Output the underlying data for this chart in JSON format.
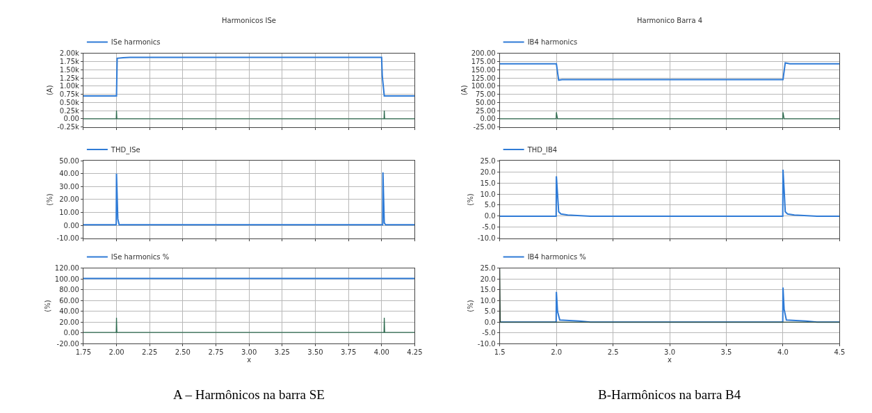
{
  "chart_data": [
    {
      "type": "line",
      "title": "Harmonicos ISe",
      "ylabel": "(A)",
      "xlim": [
        1.75,
        4.25
      ],
      "xticks": [
        {
          "value": 1.75,
          "label": null
        },
        {
          "value": 2.0,
          "label": null
        },
        {
          "value": 2.25,
          "label": null
        },
        {
          "value": 2.5,
          "label": null
        },
        {
          "value": 2.75,
          "label": null
        },
        {
          "value": 3.0,
          "label": null
        },
        {
          "value": 3.25,
          "label": null
        },
        {
          "value": 3.5,
          "label": null
        },
        {
          "value": 3.75,
          "label": null
        },
        {
          "value": 4.0,
          "label": null
        },
        {
          "value": 4.25,
          "label": null
        }
      ],
      "ylim": [
        -250,
        2000
      ],
      "yticks": [
        {
          "value": -250,
          "label": "-0.25k"
        },
        {
          "value": 0,
          "label": "0.00"
        },
        {
          "value": 250,
          "label": "0.25k"
        },
        {
          "value": 500,
          "label": "0.50k"
        },
        {
          "value": 750,
          "label": "0.75k"
        },
        {
          "value": 1000,
          "label": "1.00k"
        },
        {
          "value": 1250,
          "label": "1.25k"
        },
        {
          "value": 1500,
          "label": "1.50k"
        },
        {
          "value": 1750,
          "label": "1.75k"
        },
        {
          "value": 2000,
          "label": "2.00k"
        }
      ],
      "grid": true,
      "legend": "top left",
      "tick_labels": "y",
      "marker": "none",
      "line_style": "solid",
      "series": [
        {
          "name": "ISe harmonics",
          "color": "#2f7bd6",
          "x": [
            1.75,
            2.0,
            2.005,
            2.05,
            2.1,
            4.0,
            4.005,
            4.02,
            4.25
          ],
          "values": [
            700,
            700,
            1850,
            1870,
            1880,
            1880,
            1300,
            700,
            700
          ]
        },
        {
          "color": "#2e6b4f",
          "x": [
            1.75,
            1.998,
            2.0,
            2.003,
            4.018,
            4.02,
            4.023,
            4.25
          ],
          "values": [
            0,
            0,
            250,
            0,
            0,
            250,
            0,
            0
          ]
        }
      ]
    },
    {
      "type": "line",
      "ylabel": "(%)",
      "xlim": [
        1.75,
        4.25
      ],
      "xticks": [
        {
          "value": 1.75,
          "label": null
        },
        {
          "value": 2.0,
          "label": null
        },
        {
          "value": 2.25,
          "label": null
        },
        {
          "value": 2.5,
          "label": null
        },
        {
          "value": 2.75,
          "label": null
        },
        {
          "value": 3.0,
          "label": null
        },
        {
          "value": 3.25,
          "label": null
        },
        {
          "value": 3.5,
          "label": null
        },
        {
          "value": 3.75,
          "label": null
        },
        {
          "value": 4.0,
          "label": null
        },
        {
          "value": 4.25,
          "label": null
        }
      ],
      "ylim": [
        -10,
        50
      ],
      "yticks": [
        {
          "value": -10,
          "label": "-10.00"
        },
        {
          "value": 0,
          "label": "0.00"
        },
        {
          "value": 10,
          "label": "10.00"
        },
        {
          "value": 20,
          "label": "20.00"
        },
        {
          "value": 30,
          "label": "30.00"
        },
        {
          "value": 40,
          "label": "40.00"
        },
        {
          "value": 50,
          "label": "50.00"
        }
      ],
      "grid": true,
      "legend": "top left",
      "tick_labels": "y",
      "marker": "none",
      "line_style": "solid",
      "series": [
        {
          "name": "THD_ISe",
          "color": "#2f7bd6",
          "x": [
            1.75,
            1.998,
            2.0,
            2.01,
            2.02,
            4.008,
            4.01,
            4.02,
            4.03,
            4.25
          ],
          "values": [
            0.5,
            0.5,
            40,
            5,
            0.5,
            0.5,
            41,
            2,
            0.5,
            0.5
          ]
        }
      ]
    },
    {
      "type": "line",
      "ylabel": "(%)",
      "xlabel": "x",
      "annotations": [
        "A – Harmônicos na barra SE"
      ],
      "xlim": [
        1.75,
        4.25
      ],
      "xticks": [
        {
          "value": 1.75,
          "label": "1.75"
        },
        {
          "value": 2.0,
          "label": "2.00"
        },
        {
          "value": 2.25,
          "label": "2.25"
        },
        {
          "value": 2.5,
          "label": "2.50"
        },
        {
          "value": 2.75,
          "label": "2.75"
        },
        {
          "value": 3.0,
          "label": "3.00"
        },
        {
          "value": 3.25,
          "label": "3.25"
        },
        {
          "value": 3.5,
          "label": "3.50"
        },
        {
          "value": 3.75,
          "label": "3.75"
        },
        {
          "value": 4.0,
          "label": "4.00"
        },
        {
          "value": 4.25,
          "label": "4.25"
        }
      ],
      "ylim": [
        -20,
        120
      ],
      "yticks": [
        {
          "value": -20,
          "label": "-20.00"
        },
        {
          "value": 0,
          "label": "0.00"
        },
        {
          "value": 20,
          "label": "20.00"
        },
        {
          "value": 40,
          "label": "40.00"
        },
        {
          "value": 60,
          "label": "60.00"
        },
        {
          "value": 80,
          "label": "80.00"
        },
        {
          "value": 100,
          "label": "100.00"
        },
        {
          "value": 120,
          "label": "120.00"
        }
      ],
      "grid": true,
      "legend": "top left",
      "marker": "none",
      "line_style": "solid",
      "series": [
        {
          "name": "ISe harmonics %",
          "color": "#2f7bd6",
          "x": [
            1.75,
            4.25
          ],
          "values": [
            101,
            101
          ]
        },
        {
          "color": "#2e6b4f",
          "x": [
            1.75,
            1.998,
            2.0,
            2.003,
            4.018,
            4.02,
            4.023,
            4.25
          ],
          "values": [
            1,
            1,
            28,
            1,
            1,
            28,
            1,
            1
          ]
        }
      ]
    },
    {
      "type": "line",
      "title": "Harmonico Barra 4",
      "ylabel": "(A)",
      "xlim": [
        1.5,
        4.5
      ],
      "xticks": [
        {
          "value": 1.5,
          "label": null
        },
        {
          "value": 2.0,
          "label": null
        },
        {
          "value": 2.5,
          "label": null
        },
        {
          "value": 3.0,
          "label": null
        },
        {
          "value": 3.5,
          "label": null
        },
        {
          "value": 4.0,
          "label": null
        },
        {
          "value": 4.5,
          "label": null
        }
      ],
      "ylim": [
        -25,
        200
      ],
      "yticks": [
        {
          "value": -25,
          "label": "-25.00"
        },
        {
          "value": 0,
          "label": "0.00"
        },
        {
          "value": 25,
          "label": "25.00"
        },
        {
          "value": 50,
          "label": "50.00"
        },
        {
          "value": 75,
          "label": "75.00"
        },
        {
          "value": 100,
          "label": "100.00"
        },
        {
          "value": 125,
          "label": "125.00"
        },
        {
          "value": 150,
          "label": "150.00"
        },
        {
          "value": 175,
          "label": "175.00"
        },
        {
          "value": 200,
          "label": "200.00"
        }
      ],
      "grid": true,
      "legend": "top left",
      "tick_labels": "y",
      "marker": "none",
      "line_style": "solid",
      "series": [
        {
          "name": "IB4 harmonics",
          "color": "#2f7bd6",
          "x": [
            1.5,
            2.0,
            2.02,
            2.05,
            4.0,
            4.02,
            4.06,
            4.5
          ],
          "values": [
            168,
            168,
            118,
            120,
            120,
            171,
            168,
            168
          ]
        },
        {
          "color": "#2e6b4f",
          "x": [
            1.5,
            1.998,
            2.0,
            2.01,
            3.998,
            4.0,
            4.01,
            4.5
          ],
          "values": [
            0,
            0,
            20,
            0,
            0,
            20,
            0,
            0
          ]
        }
      ]
    },
    {
      "type": "line",
      "ylabel": "(%)",
      "xlim": [
        1.5,
        4.5
      ],
      "xticks": [
        {
          "value": 1.5,
          "label": null
        },
        {
          "value": 2.0,
          "label": null
        },
        {
          "value": 2.5,
          "label": null
        },
        {
          "value": 3.0,
          "label": null
        },
        {
          "value": 3.5,
          "label": null
        },
        {
          "value": 4.0,
          "label": null
        },
        {
          "value": 4.5,
          "label": null
        }
      ],
      "ylim": [
        -10,
        25
      ],
      "yticks": [
        {
          "value": -10,
          "label": "-10.0"
        },
        {
          "value": -5,
          "label": "-5.0"
        },
        {
          "value": 0,
          "label": "0.0"
        },
        {
          "value": 5,
          "label": "5.0"
        },
        {
          "value": 10,
          "label": "10.0"
        },
        {
          "value": 15,
          "label": "15.0"
        },
        {
          "value": 20,
          "label": "20.0"
        },
        {
          "value": 25,
          "label": "25.0"
        }
      ],
      "grid": true,
      "legend": "top left",
      "tick_labels": "y",
      "marker": "none",
      "line_style": "solid",
      "series": [
        {
          "name": "THD_IB4",
          "color": "#2f7bd6",
          "x": [
            1.5,
            1.998,
            2.0,
            2.01,
            2.02,
            2.04,
            2.1,
            2.3,
            3.998,
            4.0,
            4.01,
            4.02,
            4.04,
            4.1,
            4.3,
            4.5
          ],
          "values": [
            0,
            0,
            18,
            10,
            2,
            1,
            0.5,
            0,
            0,
            21,
            12,
            2,
            1,
            0.5,
            0,
            0
          ]
        }
      ]
    },
    {
      "type": "line",
      "ylabel": "(%)",
      "xlabel": "x",
      "annotations": [
        "B-Harmônicos na barra B4"
      ],
      "xlim": [
        1.5,
        4.5
      ],
      "xticks": [
        {
          "value": 1.5,
          "label": "1.5"
        },
        {
          "value": 2.0,
          "label": "2.0"
        },
        {
          "value": 2.5,
          "label": "2.5"
        },
        {
          "value": 3.0,
          "label": "3.0"
        },
        {
          "value": 3.5,
          "label": "3.5"
        },
        {
          "value": 4.0,
          "label": "4.0"
        },
        {
          "value": 4.5,
          "label": "4.5"
        }
      ],
      "ylim": [
        -10,
        25
      ],
      "yticks": [
        {
          "value": -10,
          "label": "-10.0"
        },
        {
          "value": -5,
          "label": "-5.0"
        },
        {
          "value": 0,
          "label": "0.0"
        },
        {
          "value": 5,
          "label": "5.0"
        },
        {
          "value": 10,
          "label": "10.0"
        },
        {
          "value": 15,
          "label": "15.0"
        },
        {
          "value": 20,
          "label": "20.0"
        },
        {
          "value": 25,
          "label": "25.0"
        }
      ],
      "grid": true,
      "legend": "top left",
      "marker": "none",
      "line_style": "solid",
      "series": [
        {
          "name": "IB4 harmonics %",
          "color": "#2f7bd6",
          "x": [
            1.5,
            1.998,
            2.0,
            2.01,
            2.03,
            2.2,
            2.3,
            3.998,
            4.0,
            4.01,
            4.03,
            4.2,
            4.3,
            4.5
          ],
          "values": [
            0,
            0,
            14,
            5,
            1,
            0.5,
            0,
            0,
            16,
            6,
            1,
            0.5,
            0,
            0
          ]
        },
        {
          "color": "#2e4a3a",
          "x": [
            1.5,
            1.505,
            4.5
          ],
          "values": [
            25,
            0,
            0
          ]
        }
      ]
    }
  ]
}
